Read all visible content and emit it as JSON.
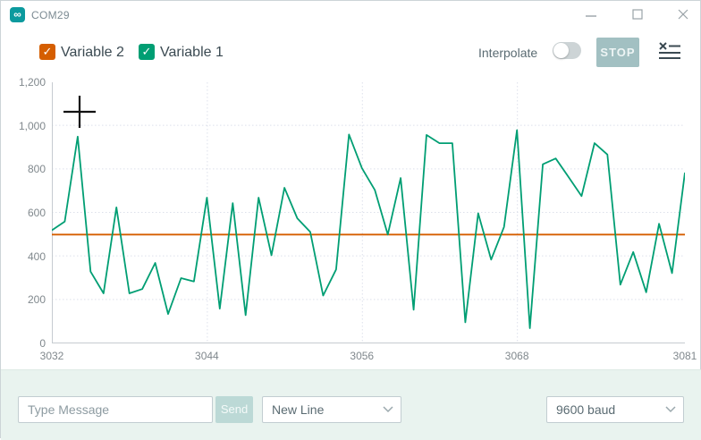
{
  "titlebar": {
    "title": "COM29",
    "icon_glyph": "∞"
  },
  "toolbar": {
    "legend": {
      "items": [
        {
          "label": "Variable 2",
          "color": "#D55E00",
          "checked": true,
          "check_glyph": "✓"
        },
        {
          "label": "Variable 1",
          "color": "#009E73",
          "checked": true,
          "check_glyph": "✓"
        }
      ]
    },
    "interpolate_label": "Interpolate",
    "interpolate_on": false,
    "stop_label": "STOP"
  },
  "chart_data": {
    "type": "line",
    "title": "",
    "xlabel": "",
    "ylabel": "",
    "xlim": [
      3032,
      3081
    ],
    "ylim": [
      0,
      1200
    ],
    "grid": true,
    "legend_position": "top-left",
    "xticks": [
      3032,
      3044,
      3056,
      3068,
      3081
    ],
    "yticks": [
      0,
      200,
      400,
      600,
      800,
      1000,
      1200
    ],
    "ytick_labels": [
      "0",
      "200",
      "400",
      "600",
      "800",
      "1,000",
      "1,200"
    ],
    "x": [
      3032,
      3033,
      3034,
      3035,
      3036,
      3037,
      3038,
      3039,
      3040,
      3041,
      3042,
      3043,
      3044,
      3045,
      3046,
      3047,
      3048,
      3049,
      3050,
      3051,
      3052,
      3053,
      3054,
      3055,
      3056,
      3057,
      3058,
      3059,
      3060,
      3061,
      3062,
      3063,
      3064,
      3065,
      3066,
      3067,
      3068,
      3069,
      3070,
      3071,
      3072,
      3073,
      3074,
      3075,
      3076,
      3077,
      3078,
      3079,
      3080,
      3081
    ],
    "series": [
      {
        "name": "Variable 2",
        "color": "#D55E00",
        "values": [
          500,
          500,
          500,
          500,
          500,
          500,
          500,
          500,
          500,
          500,
          500,
          500,
          500,
          500,
          500,
          500,
          500,
          500,
          500,
          500,
          500,
          500,
          500,
          500,
          500,
          500,
          500,
          500,
          500,
          500,
          500,
          500,
          500,
          500,
          500,
          500,
          500,
          500,
          500,
          500,
          500,
          500,
          500,
          500,
          500,
          500,
          500,
          500,
          500,
          500
        ]
      },
      {
        "name": "Variable 1",
        "color": "#009E73",
        "values": [
          520,
          560,
          950,
          330,
          230,
          625,
          230,
          250,
          370,
          135,
          300,
          285,
          670,
          160,
          645,
          130,
          670,
          405,
          715,
          575,
          512,
          220,
          340,
          960,
          805,
          705,
          500,
          760,
          155,
          958,
          920,
          920,
          97,
          598,
          385,
          535,
          980,
          70,
          823,
          850,
          764,
          677,
          920,
          868,
          270,
          420,
          235,
          550,
          323,
          785
        ]
      }
    ]
  },
  "message_bar": {
    "input_placeholder": "Type Message",
    "send_label": "Send",
    "line_ending_value": "New Line",
    "baud_value": "9600 baud"
  },
  "colors": {
    "accent_teal": "#0c9a9e",
    "variable1": "#009E73",
    "variable2": "#D55E00",
    "stop_button_bg": "#a2c0c2",
    "bottombar_bg": "#e9f3ef"
  }
}
